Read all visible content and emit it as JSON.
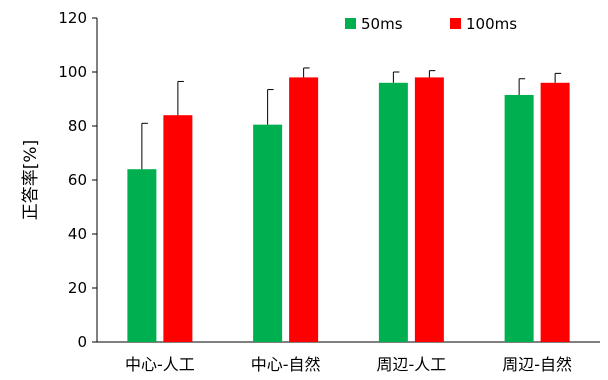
{
  "chart_data": {
    "type": "bar",
    "categories": [
      "中心-人工",
      "中心-自然",
      "周辺-人工",
      "周辺-自然"
    ],
    "series": [
      {
        "name": "50ms",
        "color": "#00b050",
        "values": [
          64,
          80.5,
          96,
          91.5
        ],
        "errors": [
          17,
          13,
          4,
          6
        ]
      },
      {
        "name": "100ms",
        "color": "#ff0000",
        "values": [
          84,
          98,
          98,
          96
        ],
        "errors": [
          12.5,
          3.5,
          2.5,
          3.5
        ]
      }
    ],
    "xlabel": "",
    "ylabel": "正答率[%]",
    "ylim": [
      0,
      120
    ],
    "yticks": [
      0,
      20,
      40,
      60,
      80,
      100,
      120
    ],
    "grid": false,
    "legend_position": "top-right"
  }
}
